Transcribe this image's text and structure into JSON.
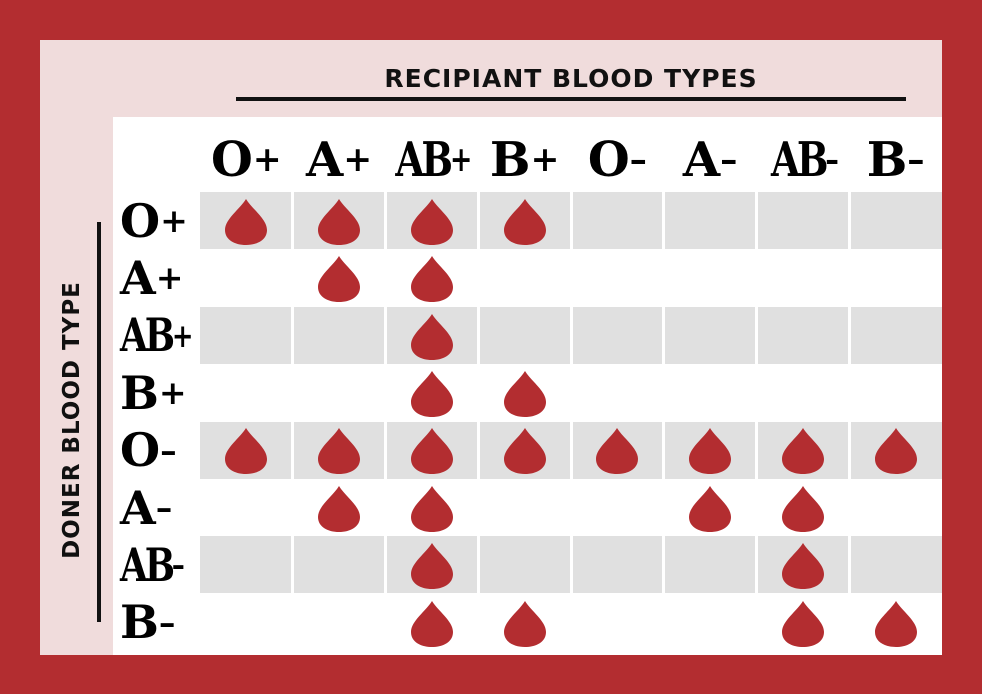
{
  "headers": {
    "recipient": "RECIPIANT BLOOD TYPES",
    "donor": "DONER BLOOD TYPE"
  },
  "columns": [
    {
      "type": "O",
      "sign": "+"
    },
    {
      "type": "A",
      "sign": "+"
    },
    {
      "type": "AB",
      "sign": "+"
    },
    {
      "type": "B",
      "sign": "+"
    },
    {
      "type": "O",
      "sign": "–"
    },
    {
      "type": "A",
      "sign": "–"
    },
    {
      "type": "AB",
      "sign": "–"
    },
    {
      "type": "B",
      "sign": "–"
    }
  ],
  "rows": [
    {
      "type": "O",
      "sign": "+",
      "compatible": [
        1,
        1,
        1,
        1,
        0,
        0,
        0,
        0
      ]
    },
    {
      "type": "A",
      "sign": "+",
      "compatible": [
        0,
        1,
        1,
        0,
        0,
        0,
        0,
        0
      ]
    },
    {
      "type": "AB",
      "sign": "+",
      "compatible": [
        0,
        0,
        1,
        0,
        0,
        0,
        0,
        0
      ]
    },
    {
      "type": "B",
      "sign": "+",
      "compatible": [
        0,
        0,
        1,
        1,
        0,
        0,
        0,
        0
      ]
    },
    {
      "type": "O",
      "sign": "–",
      "compatible": [
        1,
        1,
        1,
        1,
        1,
        1,
        1,
        1
      ]
    },
    {
      "type": "A",
      "sign": "–",
      "compatible": [
        0,
        1,
        1,
        0,
        0,
        1,
        1,
        0
      ]
    },
    {
      "type": "AB",
      "sign": "–",
      "compatible": [
        0,
        0,
        1,
        0,
        0,
        0,
        1,
        0
      ]
    },
    {
      "type": "B",
      "sign": "–",
      "compatible": [
        0,
        0,
        1,
        1,
        0,
        0,
        1,
        1
      ]
    }
  ],
  "icons": {
    "compatible": "blood-drop-icon"
  },
  "colors": {
    "frame": "#b32d30",
    "panel": "#f0dcdc",
    "drop": "#b32d30",
    "band": "#e0e0e0"
  }
}
